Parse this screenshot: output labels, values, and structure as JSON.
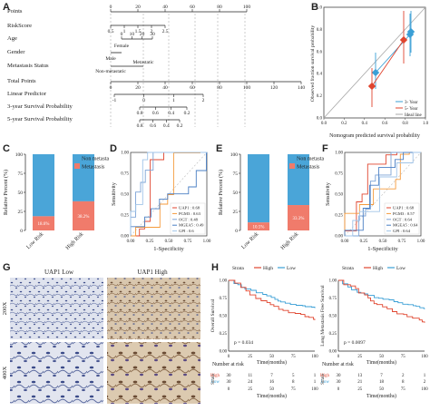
{
  "panels": {
    "A": "A",
    "B": "B",
    "C": "C",
    "D": "D",
    "E": "E",
    "F": "F",
    "G": "G",
    "H": "H"
  },
  "nomogram": {
    "rows": [
      "Points",
      "RiskScore",
      "Age",
      "Gender",
      "Metastasis Status",
      "Total Points",
      "Linear Predictor",
      "3-year Survival Probability",
      "5-year Survival Probability"
    ],
    "points_ticks": [
      "0",
      "20",
      "40",
      "60",
      "80",
      "100"
    ],
    "riskscore_ticks": [
      "0.5",
      "1",
      "1.5",
      "2",
      "2.5"
    ],
    "age_ticks": [
      "0",
      "10",
      "20",
      "30"
    ],
    "gender_labels": [
      "Female",
      "Male"
    ],
    "metastasis_labels": [
      "Metastatic",
      "Non-metastatic"
    ],
    "total_ticks": [
      "0",
      "20",
      "40",
      "60",
      "80",
      "100",
      "120",
      "140"
    ],
    "lp_ticks": [
      "-1",
      "0",
      "1",
      "2"
    ],
    "surv3_ticks": [
      "0.8",
      "0.6",
      "0.4",
      "0.2"
    ],
    "surv5_ticks": [
      "0.8",
      "0.6",
      "0.4",
      "0.2"
    ]
  },
  "calibration": {
    "ylabel": "Observed fraction survival probability",
    "xlabel": "Nomogram predicted survival probability",
    "ticks": [
      "0.0",
      "0.2",
      "0.4",
      "0.6",
      "0.8",
      "1.0"
    ],
    "legend": [
      "3- Year",
      "5- Year",
      "Ideal line"
    ],
    "colors": {
      "y3": "#3a9fd6",
      "y5": "#e0452f",
      "ideal": "#aaaaaa"
    }
  },
  "bars": {
    "C": {
      "ylabel": "Relative Percent (%)",
      "categories": [
        "Low Risk",
        "High Risk"
      ],
      "metastasis_labels": [
        "18.6%",
        "38.2%"
      ],
      "metastasis_pct": [
        18.6,
        38.2
      ]
    },
    "E": {
      "ylabel": "Relative Percent (%)",
      "categories": [
        "Low Risk",
        "High Risk"
      ],
      "metastasis_labels": [
        "10.5%",
        "33.3%"
      ],
      "metastasis_pct": [
        10.5,
        33.3
      ]
    },
    "legend": [
      "Non metastasis",
      "Metastasis"
    ],
    "ticks": [
      "0",
      "25",
      "50",
      "75",
      "100"
    ],
    "colors": {
      "non": "#4aa5d8",
      "met": "#f07b6b"
    }
  },
  "roc": {
    "D": {
      "entries": [
        "UAP1 : 0.68",
        "PGM3 : 0.63",
        "OGT  : 0.48",
        "MGEA5 : 0.49",
        "GPI  : 0.6"
      ]
    },
    "F": {
      "entries": [
        "UAP1 : 0.68",
        "PGM3 : 0.57",
        "OGT  : 0.64",
        "MGEA5 : 0.64",
        "GPI  : 0.64"
      ]
    },
    "xlabel": "1-Specificity",
    "ylabel": "Sensitivity",
    "ticks": [
      "0.00",
      "0.25",
      "0.50",
      "0.75",
      "1.00"
    ],
    "colors": [
      "#e0452f",
      "#f59a3b",
      "#7da3d6",
      "#4a7fc4",
      "#a0c4e8"
    ]
  },
  "histology": {
    "col_titles": [
      "UAP1 Low",
      "UAP1 High"
    ],
    "row_labels": [
      "200X",
      "400X"
    ]
  },
  "km": [
    {
      "ylabel": "Overall Survival",
      "pvalue": "p = 0.034",
      "risk_high": [
        "30",
        "11",
        "7",
        "5",
        "1"
      ],
      "risk_low": [
        "30",
        "24",
        "16",
        "8",
        "1"
      ]
    },
    {
      "ylabel": "Long Metastasis Free Survival",
      "pvalue": "p = 0.0097",
      "risk_high": [
        "30",
        "13",
        "7",
        "2",
        "1"
      ],
      "risk_low": [
        "30",
        "21",
        "18",
        "8",
        "2"
      ]
    }
  ],
  "km_common": {
    "strata_title": "Strata",
    "legend": [
      "High",
      "Low"
    ],
    "xlabel": "Time(months)",
    "ticks_x": [
      "0",
      "25",
      "50",
      "75",
      "100"
    ],
    "ticks_y": [
      "0.00",
      "0.25",
      "0.50",
      "0.75",
      "1.00"
    ],
    "number_at_risk": "Number at risk",
    "strata_axis": "Strata",
    "row_labels": [
      "High",
      "Low"
    ],
    "colors": {
      "high": "#e0452f",
      "low": "#3a9fd6"
    }
  }
}
